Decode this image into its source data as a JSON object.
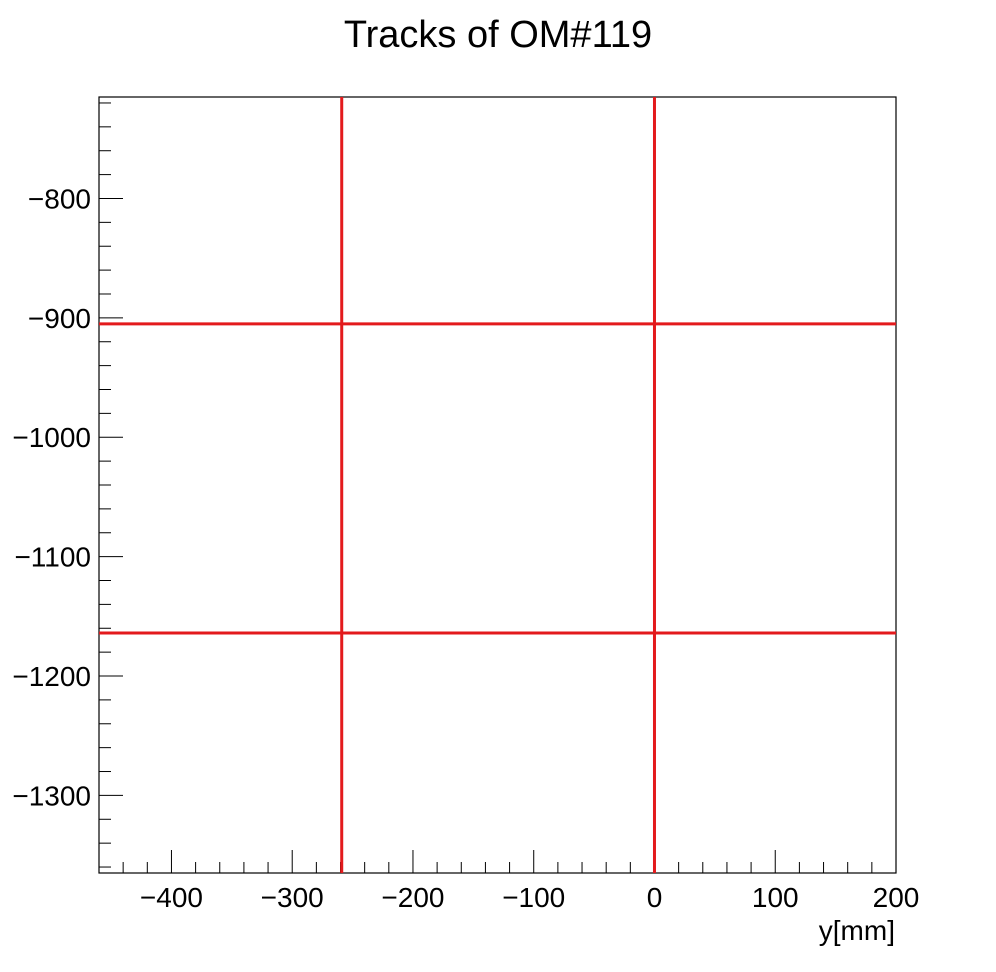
{
  "chart_data": {
    "type": "line",
    "title": "Tracks of OM#119",
    "xlabel": "y[mm]",
    "ylabel": "",
    "xlim": [
      -460,
      200
    ],
    "ylim": [
      -1365,
      -715
    ],
    "x_ticks": [
      -400,
      -300,
      -200,
      -100,
      0,
      100,
      200
    ],
    "x_tick_labels": [
      "−400",
      "−300",
      "−200",
      "−100",
      "0",
      "100",
      "200"
    ],
    "y_ticks": [
      -800,
      -900,
      -1000,
      -1100,
      -1200,
      -1300
    ],
    "y_tick_labels": [
      "−800",
      "−900",
      "−1000",
      "−1100",
      "−1200",
      "−1300"
    ],
    "x_minor_step": 20,
    "y_minor_step": 20,
    "grid": false,
    "line_color": "#e31a1c",
    "series": [
      {
        "orientation": "vertical",
        "x": [
          -259,
          -259
        ],
        "y": [
          -1365,
          -715
        ]
      },
      {
        "orientation": "vertical",
        "x": [
          0,
          0
        ],
        "y": [
          -1365,
          -715
        ]
      },
      {
        "orientation": "horizontal",
        "x": [
          -460,
          200
        ],
        "y": [
          -905,
          -905
        ]
      },
      {
        "orientation": "horizontal",
        "x": [
          -460,
          200
        ],
        "y": [
          -1164,
          -1164
        ]
      }
    ]
  }
}
